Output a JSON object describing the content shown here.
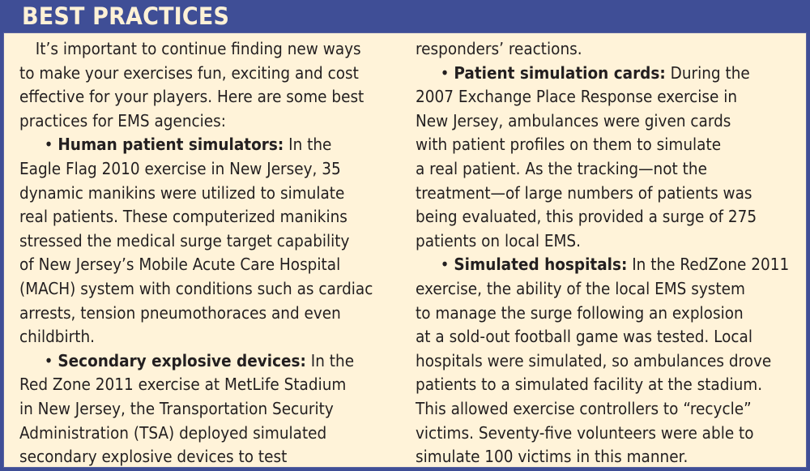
{
  "header": {
    "title": "BEST PRACTICES"
  },
  "colors": {
    "frame": "#3f4e96",
    "panel": "#fff3d9",
    "title_text": "#fdf1d6",
    "body_text": "#231f20"
  },
  "left_column": {
    "lines": [
      {
        "type": "indent",
        "text": "It’s important to continue finding new ways"
      },
      {
        "type": "plain",
        "text": "to make your exercises fun, exciting and cost"
      },
      {
        "type": "plain",
        "text": "effective for your players. Here are some best"
      },
      {
        "type": "plain",
        "text": "practices for EMS agencies:"
      },
      {
        "type": "bullet",
        "bold": "Human patient simulators:",
        "text": " In the"
      },
      {
        "type": "plain",
        "text": "Eagle Flag 2010 exercise in New Jersey, 35"
      },
      {
        "type": "plain",
        "text": "dynamic manikins were utilized to simulate"
      },
      {
        "type": "plain",
        "text": "real patients. These computerized manikins"
      },
      {
        "type": "plain",
        "text": "stressed the medical surge target capability"
      },
      {
        "type": "plain",
        "text": "of New Jersey’s Mobile Acute Care Hospital"
      },
      {
        "type": "plain",
        "text": "(MACH) system with conditions such as cardiac"
      },
      {
        "type": "plain",
        "text": "arrests, tension pneumothoraces and even"
      },
      {
        "type": "plain",
        "text": "childbirth."
      },
      {
        "type": "bullet",
        "bold": "Secondary explosive devices:",
        "text": " In the"
      },
      {
        "type": "plain",
        "text": "Red Zone 2011 exercise at MetLife Stadium"
      },
      {
        "type": "plain",
        "text": "in New Jersey, the Transportation Security"
      },
      {
        "type": "plain",
        "text": "Administration (TSA) deployed simulated"
      },
      {
        "type": "plain",
        "text": "secondary explosive devices to test"
      }
    ]
  },
  "right_column": {
    "lines": [
      {
        "type": "plain",
        "text": "responders’ reactions."
      },
      {
        "type": "bullet",
        "bold": "Patient simulation cards:",
        "text": " During the"
      },
      {
        "type": "plain",
        "text": "2007 Exchange Place Response exercise in"
      },
      {
        "type": "plain",
        "text": "New Jersey, ambulances were given cards"
      },
      {
        "type": "plain",
        "text": "with patient profiles on them to simulate"
      },
      {
        "type": "plain",
        "text": "a real patient. As the tracking—not the"
      },
      {
        "type": "plain",
        "text": "treatment—of large numbers of patients was"
      },
      {
        "type": "plain",
        "text": "being evaluated, this provided a surge of 275"
      },
      {
        "type": "plain",
        "text": "patients on local EMS."
      },
      {
        "type": "bullet",
        "bold": "Simulated hospitals:",
        "text": " In the RedZone 2011"
      },
      {
        "type": "plain",
        "text": "exercise, the ability of the local EMS system"
      },
      {
        "type": "plain",
        "text": "to manage the surge following an explosion"
      },
      {
        "type": "plain",
        "text": "at a sold-out football game was tested. Local"
      },
      {
        "type": "plain",
        "text": "hospitals were simulated, so ambulances drove"
      },
      {
        "type": "plain",
        "text": "patients to a simulated facility at the stadium."
      },
      {
        "type": "plain",
        "text": "This allowed exercise controllers to “recycle”"
      },
      {
        "type": "plain",
        "text": "victims. Seventy-five volunteers were able to"
      },
      {
        "type": "plain",
        "text": "simulate 100 victims in this manner."
      }
    ]
  },
  "bullet_glyph": "•"
}
